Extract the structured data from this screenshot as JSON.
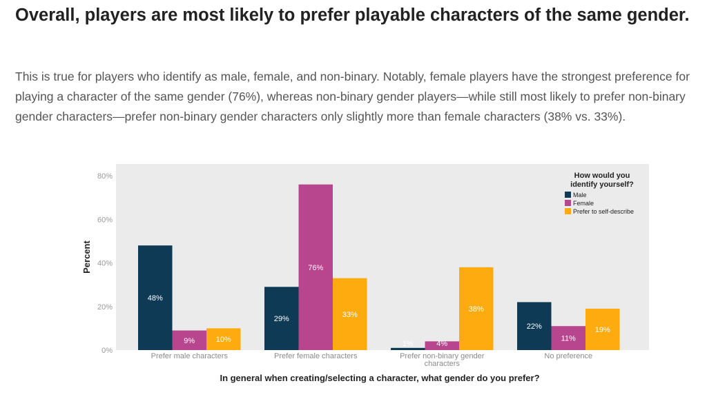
{
  "article": {
    "headline": "Overall, players are most likely to prefer playable characters of the same gender.",
    "lede": "This is true for players who identify as male, female, and non-binary. Notably, female players have the strongest preference for playing a character of the same gender (76%), whereas non-binary gender players—while still most likely to prefer non-binary gender characters—prefer non-binary gender characters only slightly more than female characters (38% vs. 33%)."
  },
  "chart_data": {
    "type": "bar",
    "categories": [
      "Prefer male characters",
      "Prefer female characters",
      "Prefer non-binary gender characters",
      "No preference"
    ],
    "series": [
      {
        "name": "Male",
        "color": "#0e3a55",
        "values": [
          48,
          29,
          1,
          22
        ],
        "labels": [
          "48%",
          "29%",
          "1%",
          "22%"
        ]
      },
      {
        "name": "Female",
        "color": "#b8468f",
        "values": [
          9,
          76,
          4,
          11
        ],
        "labels": [
          "9%",
          "76%",
          "4%",
          "11%"
        ]
      },
      {
        "name": "Prefer to self-describe",
        "color": "#fdab0f",
        "values": [
          10,
          33,
          38,
          19
        ],
        "labels": [
          "10%",
          "33%",
          "38%",
          "19%"
        ]
      }
    ],
    "xlabel": "In general when creating/selecting a character, what gender do you prefer?",
    "ylabel": "Percent",
    "ylim": [
      0,
      80
    ],
    "yticks": [
      "0%",
      "20%",
      "40%",
      "60%",
      "80%"
    ],
    "legend_title": "How would you identify yourself?",
    "legend_position": "top-right",
    "grid": false,
    "plot_background": "#ebebeb"
  }
}
